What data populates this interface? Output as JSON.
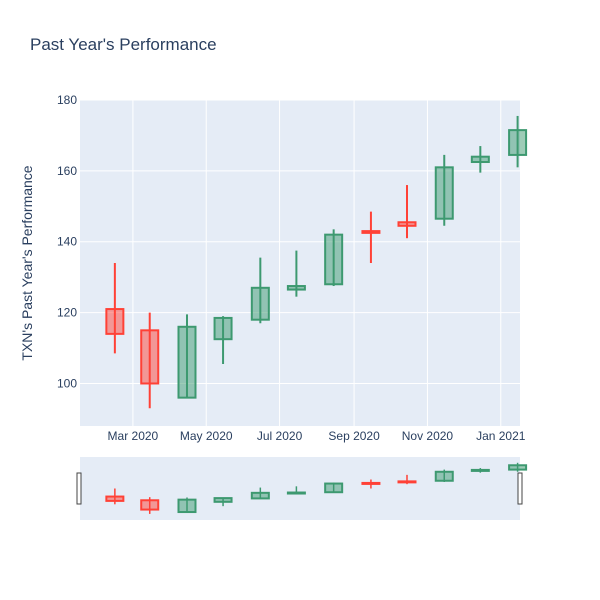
{
  "chart_data": {
    "type": "candlestick",
    "title": "Past Year's Performance",
    "ylabel": "TXN's Past Year's Performance",
    "xlabel": "",
    "ylim": [
      88,
      180
    ],
    "yticks": [
      100,
      120,
      140,
      160,
      180
    ],
    "xticks": [
      "Mar 2020",
      "May 2020",
      "Jul 2020",
      "Sep 2020",
      "Nov 2020",
      "Jan 2021"
    ],
    "colors": {
      "increasing": "#3d9970",
      "decreasing": "#ff4136",
      "plot_bg": "#e5ecf6",
      "grid": "#ffffff"
    },
    "range_slider": true,
    "candles": [
      {
        "x": "2020-02",
        "open": 121,
        "high": 134,
        "low": 108.5,
        "close": 114
      },
      {
        "x": "2020-03",
        "open": 115,
        "high": 120,
        "low": 93,
        "close": 100
      },
      {
        "x": "2020-04",
        "open": 96,
        "high": 119.5,
        "low": 96,
        "close": 116
      },
      {
        "x": "2020-05",
        "open": 112.5,
        "high": 119,
        "low": 105.5,
        "close": 118.5
      },
      {
        "x": "2020-06",
        "open": 118,
        "high": 135.5,
        "low": 117,
        "close": 127
      },
      {
        "x": "2020-07",
        "open": 126.5,
        "high": 137.5,
        "low": 124.5,
        "close": 127.5
      },
      {
        "x": "2020-08",
        "open": 128,
        "high": 143.5,
        "low": 127.5,
        "close": 142
      },
      {
        "x": "2020-09",
        "open": 143,
        "high": 148.5,
        "low": 134,
        "close": 142.5
      },
      {
        "x": "2020-10",
        "open": 145.5,
        "high": 156,
        "low": 141,
        "close": 144.5
      },
      {
        "x": "2020-11",
        "open": 146.5,
        "high": 164.5,
        "low": 144.5,
        "close": 161
      },
      {
        "x": "2020-12",
        "open": 162.5,
        "high": 167,
        "low": 159.5,
        "close": 164
      },
      {
        "x": "2021-01",
        "open": 164.5,
        "high": 175.5,
        "low": 161,
        "close": 171.5
      }
    ]
  }
}
